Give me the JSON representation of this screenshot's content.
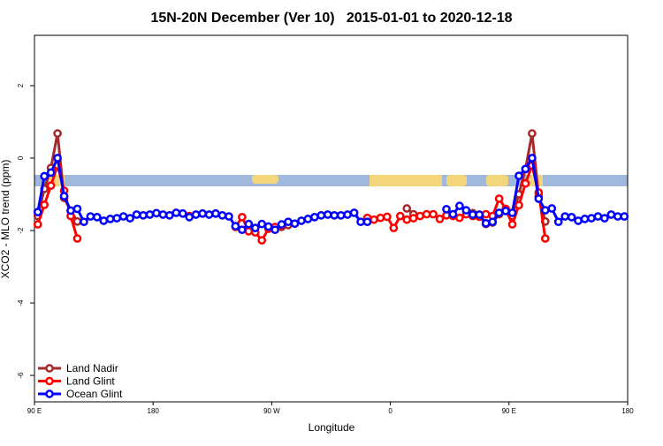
{
  "chart_data": {
    "type": "line",
    "title": "15N-20N December (Ver 10)   2015-01-01 to 2020-12-18",
    "xlabel": "Longitude",
    "ylabel": "XCO2 - MLO trend (ppm)",
    "x": [
      92.5,
      97.5,
      102.5,
      107.5,
      112.5,
      117.5,
      122.5,
      127.5,
      132.5,
      137.5,
      142.5,
      147.5,
      152.5,
      157.5,
      162.5,
      167.5,
      172.5,
      177.5,
      182.5,
      187.5,
      192.5,
      197.5,
      202.5,
      207.5,
      212.5,
      217.5,
      222.5,
      227.5,
      232.5,
      237.5,
      242.5,
      247.5,
      252.5,
      257.5,
      262.5,
      267.5,
      272.5,
      277.5,
      282.5,
      287.5,
      292.5,
      297.5,
      302.5,
      307.5,
      312.5,
      317.5,
      322.5,
      327.5,
      332.5,
      337.5,
      342.5,
      347.5,
      352.5,
      357.5,
      362.5,
      367.5,
      372.5,
      377.5,
      382.5,
      387.5,
      392.5,
      397.5,
      402.5,
      407.5,
      412.5,
      417.5,
      422.5,
      427.5,
      432.5,
      437.5,
      442.5,
      447.5,
      452.5,
      457.5,
      462.5,
      467.5,
      472.5,
      477.5,
      482.5,
      487.5,
      492.5,
      497.5,
      502.5,
      507.5,
      512.5,
      517.5,
      522.5,
      527.5,
      532.5,
      537.5
    ],
    "series": [
      {
        "name": "Land Nadir",
        "color": "#a52a2a",
        "values": [
          -1.6,
          -0.85,
          -0.27,
          0.68,
          -1.1,
          -1.45,
          -1.75,
          null,
          null,
          null,
          null,
          null,
          null,
          null,
          null,
          null,
          null,
          null,
          null,
          null,
          null,
          null,
          null,
          null,
          null,
          null,
          null,
          null,
          null,
          null,
          null,
          null,
          null,
          null,
          null,
          null,
          -1.93,
          -1.9,
          -1.85,
          null,
          null,
          null,
          null,
          null,
          null,
          null,
          null,
          null,
          null,
          null,
          null,
          null,
          null,
          null,
          null,
          null,
          -1.39,
          -1.55,
          null,
          null,
          null,
          null,
          null,
          null,
          null,
          null,
          -1.52,
          -1.6,
          -1.82,
          -1.78,
          -1.55,
          -1.45,
          -1.6,
          -1.0,
          -0.3,
          0.68,
          -1.05,
          -1.75,
          null,
          null,
          null,
          null,
          null,
          null,
          null,
          null,
          null,
          null,
          null,
          null
        ]
      },
      {
        "name": "Land Glint",
        "color": "#ff0000",
        "values": [
          -1.83,
          -1.29,
          -0.76,
          -0.2,
          -0.9,
          -1.6,
          -2.22,
          null,
          null,
          null,
          null,
          null,
          null,
          null,
          null,
          null,
          null,
          null,
          null,
          null,
          null,
          null,
          null,
          -1.6,
          null,
          null,
          null,
          null,
          null,
          null,
          -1.9,
          -1.63,
          -2.02,
          -2.05,
          -2.27,
          -1.95,
          -1.9,
          -1.85,
          null,
          null,
          null,
          null,
          null,
          null,
          null,
          null,
          null,
          null,
          null,
          null,
          -1.65,
          -1.7,
          -1.65,
          -1.62,
          -1.93,
          -1.6,
          -1.7,
          -1.66,
          -1.6,
          -1.55,
          -1.55,
          -1.68,
          -1.58,
          -1.6,
          -1.65,
          -1.55,
          -1.6,
          -1.62,
          -1.55,
          -1.6,
          -1.12,
          -1.4,
          -1.83,
          -1.3,
          -0.7,
          -0.2,
          -0.95,
          -2.22,
          null,
          null,
          null,
          null,
          null,
          null,
          null,
          null,
          null,
          null,
          null,
          null
        ]
      },
      {
        "name": "Ocean Glint",
        "color": "#0000ff",
        "values": [
          -1.49,
          -0.5,
          -0.4,
          0.0,
          -1.05,
          -1.45,
          -1.4,
          -1.76,
          -1.61,
          -1.63,
          -1.73,
          -1.68,
          -1.66,
          -1.61,
          -1.66,
          -1.56,
          -1.58,
          -1.56,
          -1.52,
          -1.56,
          -1.58,
          -1.51,
          -1.53,
          -1.63,
          -1.56,
          -1.53,
          -1.56,
          -1.53,
          -1.58,
          -1.61,
          -1.88,
          -1.98,
          -1.82,
          -1.93,
          -1.82,
          -1.89,
          -1.98,
          -1.83,
          -1.76,
          -1.81,
          -1.73,
          -1.68,
          -1.63,
          -1.58,
          -1.56,
          -1.58,
          -1.58,
          -1.56,
          -1.51,
          -1.76,
          -1.76,
          null,
          null,
          null,
          null,
          null,
          null,
          null,
          null,
          null,
          null,
          null,
          -1.41,
          -1.55,
          -1.32,
          -1.44,
          -1.56,
          -1.56,
          -1.8,
          -1.76,
          -1.51,
          -1.46,
          -1.51,
          -0.49,
          -0.3,
          0.0,
          -1.12,
          -1.44,
          -1.39,
          -1.76,
          -1.61,
          -1.63,
          -1.73,
          -1.68,
          -1.66,
          -1.61,
          -1.66,
          -1.56,
          -1.61,
          -1.61
        ]
      }
    ],
    "xlim": [
      90,
      540
    ],
    "xticks": [
      {
        "value": 90,
        "label": "90 E"
      },
      180,
      {
        "value": 270,
        "label": "90 W"
      },
      {
        "value": 360,
        "label": "0"
      },
      {
        "value": 450,
        "label": "90 E"
      },
      {
        "value": 540,
        "label": "180"
      }
    ],
    "ylim": [
      -6.73,
      3.39
    ],
    "yticks": [
      -6,
      -4,
      -2,
      0,
      2
    ],
    "legend": "lower left"
  }
}
